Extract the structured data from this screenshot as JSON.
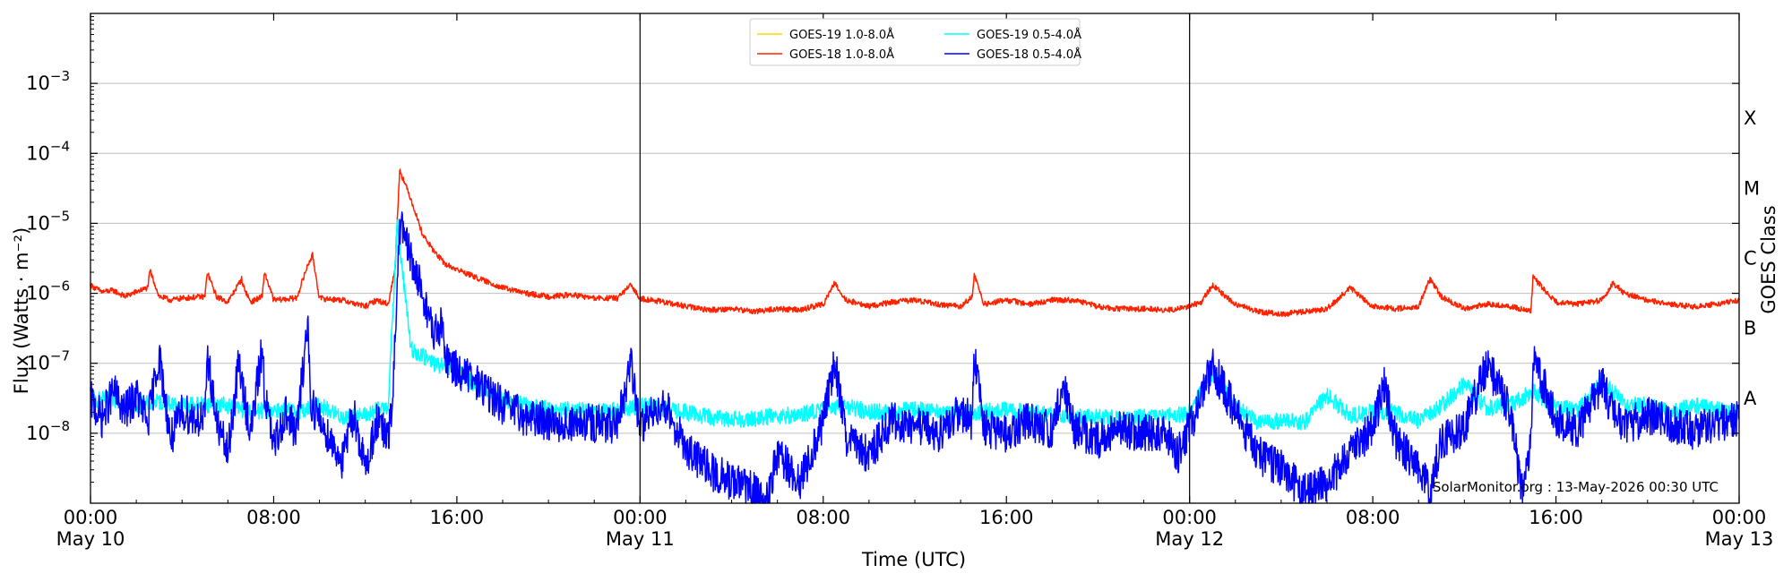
{
  "chart_data": {
    "type": "line",
    "title": "",
    "xlabel": "Time (UTC)",
    "ylabel": "Flux (Watts · m⁻²)",
    "ylabel_right": "GOES Class",
    "yscale": "log",
    "ylim": [
      1e-09,
      0.01
    ],
    "xlim": [
      0,
      72
    ],
    "x_units": "hours since May 10 00:00 UTC",
    "y_ticks": [
      {
        "value": 1e-08,
        "base": "10",
        "exp": "−8"
      },
      {
        "value": 1e-07,
        "base": "10",
        "exp": "−7"
      },
      {
        "value": 1e-06,
        "base": "10",
        "exp": "−6"
      },
      {
        "value": 1e-05,
        "base": "10",
        "exp": "−5"
      },
      {
        "value": 0.0001,
        "base": "10",
        "exp": "−4"
      },
      {
        "value": 0.001,
        "base": "10",
        "exp": "−3"
      }
    ],
    "x_ticks": [
      {
        "x": 0,
        "line1": "00:00",
        "line2": "May 10"
      },
      {
        "x": 8,
        "line1": "08:00",
        "line2": ""
      },
      {
        "x": 16,
        "line1": "16:00",
        "line2": ""
      },
      {
        "x": 24,
        "line1": "00:00",
        "line2": "May 11"
      },
      {
        "x": 32,
        "line1": "08:00",
        "line2": ""
      },
      {
        "x": 40,
        "line1": "16:00",
        "line2": ""
      },
      {
        "x": 48,
        "line1": "00:00",
        "line2": "May 12"
      },
      {
        "x": 56,
        "line1": "08:00",
        "line2": ""
      },
      {
        "x": 64,
        "line1": "16:00",
        "line2": ""
      },
      {
        "x": 72,
        "line1": "00:00",
        "line2": "May 13"
      }
    ],
    "day_boundaries": [
      24,
      48
    ],
    "classes": [
      {
        "label": "A",
        "value": 3.16e-08
      },
      {
        "label": "B",
        "value": 3.16e-07
      },
      {
        "label": "C",
        "value": 3.16e-06
      },
      {
        "label": "M",
        "value": 3.16e-05
      },
      {
        "label": "X",
        "value": 0.000316
      }
    ],
    "grid": true,
    "legend_position": "top-center",
    "series": [
      {
        "name": "GOES-19 1.0-8.0Å",
        "color": "#ffd700",
        "x": [],
        "y": []
      },
      {
        "name": "GOES-18 1.0-8.0Å",
        "color": "#ff2200",
        "x": [
          0,
          0.5,
          1,
          1.5,
          2,
          2.5,
          2.6,
          3,
          3.5,
          4,
          5,
          5.1,
          5.5,
          6,
          6.6,
          6.7,
          7,
          7.5,
          7.6,
          8,
          9,
          9.5,
          9.7,
          10,
          11,
          12,
          12.5,
          13,
          13.3,
          13.5,
          14,
          14.5,
          15,
          15.5,
          16,
          17,
          18,
          19,
          20,
          21,
          22,
          23,
          23.6,
          24,
          25,
          26,
          27,
          28,
          29,
          30,
          31,
          32,
          32.5,
          33,
          34,
          35,
          36,
          37,
          38,
          38.5,
          38.6,
          39,
          40,
          41,
          42,
          43,
          44,
          45,
          46,
          47,
          47.5,
          48,
          48.5,
          49,
          50,
          51,
          52,
          53,
          54,
          55,
          56,
          57,
          58,
          58.5,
          59,
          60,
          61,
          62,
          62.9,
          63,
          64,
          65,
          66,
          66.5,
          67,
          68,
          69,
          70,
          71,
          72
        ],
        "y": [
          1.3e-06,
          1.05e-06,
          1.1e-06,
          9e-07,
          1.05e-06,
          1.2e-06,
          2.1e-06,
          9e-07,
          8e-07,
          8.5e-07,
          9e-07,
          2e-06,
          9e-07,
          7.5e-07,
          1.6e-06,
          1.2e-06,
          7.5e-07,
          9e-07,
          2e-06,
          8e-07,
          8.5e-07,
          2.6e-06,
          3.5e-06,
          8.5e-07,
          8e-07,
          6.5e-07,
          8e-07,
          7e-07,
          2.2e-06,
          5.8e-05,
          2.2e-05,
          7e-06,
          4e-06,
          2.6e-06,
          2.2e-06,
          1.6e-06,
          1.2e-06,
          1e-06,
          9e-07,
          9.5e-07,
          8.5e-07,
          8.5e-07,
          1.3e-06,
          8.5e-07,
          7.5e-07,
          6.5e-07,
          5.8e-07,
          6e-07,
          5.5e-07,
          6e-07,
          5.8e-07,
          7e-07,
          1.4e-06,
          8e-07,
          6.5e-07,
          7.5e-07,
          8e-07,
          7e-07,
          6.5e-07,
          9e-07,
          1.8e-06,
          7e-07,
          8e-07,
          7e-07,
          8e-07,
          8e-07,
          6.5e-07,
          6e-07,
          6e-07,
          5.8e-07,
          6e-07,
          6.5e-07,
          7.5e-07,
          1.3e-06,
          7e-07,
          5.5e-07,
          5e-07,
          5.5e-07,
          6e-07,
          1.2e-06,
          6.5e-07,
          6e-07,
          6.5e-07,
          1.6e-06,
          9e-07,
          6e-07,
          7e-07,
          6.5e-07,
          5.5e-07,
          1.7e-06,
          7.5e-07,
          7e-07,
          8e-07,
          1.4e-06,
          1e-06,
          8e-07,
          7e-07,
          6.5e-07,
          7e-07,
          8e-07
        ]
      },
      {
        "name": "GOES-19 0.5-4.0Å",
        "color": "#00ffff",
        "x": [
          0,
          1,
          2,
          3,
          4,
          5,
          6,
          7,
          8,
          9,
          10,
          11,
          12,
          13,
          13.4,
          14,
          15,
          16,
          17,
          18,
          19,
          20,
          21,
          22,
          23,
          24,
          25,
          26,
          27,
          28,
          29,
          30,
          31,
          32,
          33,
          34,
          35,
          36,
          37,
          38,
          39,
          40,
          41,
          42,
          43,
          44,
          45,
          46,
          47,
          48,
          49,
          50,
          51,
          52,
          53,
          54,
          55,
          56,
          57,
          58,
          59,
          60,
          61,
          62,
          63,
          64,
          65,
          66,
          67,
          68,
          69,
          70,
          71,
          72
        ],
        "y": [
          3e-08,
          3e-08,
          2.5e-08,
          2.8e-08,
          2.5e-08,
          2.6e-08,
          2.5e-08,
          2e-08,
          2.2e-08,
          2e-08,
          2.5e-08,
          1.7e-08,
          1.8e-08,
          2.5e-08,
          1e-05,
          1.6e-07,
          1e-07,
          7.5e-08,
          4.5e-08,
          3e-08,
          2.5e-08,
          2.2e-08,
          2.2e-08,
          2e-08,
          2.1e-08,
          2.5e-08,
          2.2e-08,
          2e-08,
          1.7e-08,
          1.6e-08,
          1.6e-08,
          1.8e-08,
          1.8e-08,
          2.2e-08,
          2.5e-08,
          2e-08,
          2e-08,
          2.2e-08,
          2e-08,
          2e-08,
          2e-08,
          2.2e-08,
          2e-08,
          1.8e-08,
          1.7e-08,
          1.7e-08,
          1.6e-08,
          1.7e-08,
          1.7e-08,
          2e-08,
          7e-08,
          2.5e-08,
          1.4e-08,
          1.5e-08,
          1.4e-08,
          3.5e-08,
          1.8e-08,
          2e-08,
          2e-08,
          1.5e-08,
          2.5e-08,
          5e-08,
          2.3e-08,
          2.5e-08,
          4e-08,
          2.3e-08,
          2.2e-08,
          6e-08,
          2.5e-08,
          2.5e-08,
          2e-08,
          2.5e-08,
          2.2e-08,
          2e-08
        ]
      },
      {
        "name": "GOES-18 0.5-4.0Å",
        "color": "#0000ff",
        "x": [
          0,
          0.5,
          1,
          1.5,
          2,
          2.5,
          3,
          3.5,
          4,
          5,
          5.1,
          5.5,
          6,
          6.5,
          6.6,
          7,
          7.5,
          7.6,
          8,
          8.5,
          9,
          9.5,
          9.6,
          10,
          10.5,
          11,
          11.5,
          12,
          12.5,
          13,
          13.2,
          13.5,
          14,
          14.5,
          15,
          15.3,
          15.5,
          16,
          17,
          18,
          19,
          20,
          21,
          22,
          23,
          23.6,
          24,
          25,
          26,
          27,
          28,
          29,
          29.5,
          30,
          31,
          32,
          32.5,
          33,
          34,
          35,
          36,
          37,
          38,
          38.5,
          38.6,
          39,
          40,
          41,
          42,
          42.5,
          43,
          44,
          45,
          46,
          47,
          47.5,
          48,
          49,
          50,
          51,
          52,
          53,
          54,
          55,
          56,
          56.5,
          57,
          58,
          58.5,
          59,
          60,
          61,
          62,
          62.5,
          62.9,
          63,
          64,
          65,
          66,
          66.5,
          67,
          68,
          69,
          70,
          71,
          72
        ],
        "y": [
          3e-08,
          1.6e-08,
          4e-08,
          2e-08,
          3.5e-08,
          1.4e-08,
          1.3e-07,
          8e-09,
          2e-08,
          1.5e-08,
          1.4e-07,
          1.5e-08,
          5e-09,
          1.2e-07,
          5e-08,
          1e-08,
          1.7e-07,
          4e-08,
          6e-09,
          2e-08,
          1e-08,
          4.3e-07,
          3e-08,
          1.5e-08,
          8e-09,
          4e-09,
          2e-08,
          3e-09,
          1.5e-08,
          8e-09,
          3e-08,
          1e-05,
          3e-06,
          1e-06,
          2.5e-07,
          3.5e-07,
          1.3e-07,
          8e-08,
          5e-08,
          2.5e-08,
          1.7e-08,
          1.5e-08,
          1.3e-08,
          1.4e-08,
          1.2e-08,
          1e-07,
          1.2e-08,
          3e-08,
          6e-09,
          3e-09,
          2e-09,
          1.5e-09,
          1e-09,
          5e-09,
          2e-09,
          1.5e-08,
          1.1e-07,
          8e-09,
          5e-09,
          1.5e-08,
          1.3e-08,
          1e-08,
          2e-08,
          1.5e-08,
          1.5e-07,
          1.2e-08,
          1e-08,
          1.5e-08,
          1.1e-08,
          5e-08,
          1.1e-08,
          8e-09,
          1.2e-08,
          1e-08,
          1e-08,
          5e-09,
          1.2e-08,
          9e-08,
          2e-08,
          5e-09,
          3e-09,
          1.5e-09,
          2e-09,
          5e-09,
          1.2e-08,
          5e-08,
          8e-09,
          3e-09,
          1.5e-09,
          8e-09,
          1.2e-08,
          1e-07,
          2e-08,
          1.5e-09,
          6e-09,
          1.4e-07,
          1.5e-08,
          1.2e-08,
          5e-08,
          2e-08,
          1.2e-08,
          1.8e-08,
          1.3e-08,
          1.1e-08,
          1.4e-08,
          1.6e-08
        ]
      }
    ]
  },
  "footer": {
    "credit": "SolarMonitor.org : 13-May-2026 00:30 UTC"
  }
}
